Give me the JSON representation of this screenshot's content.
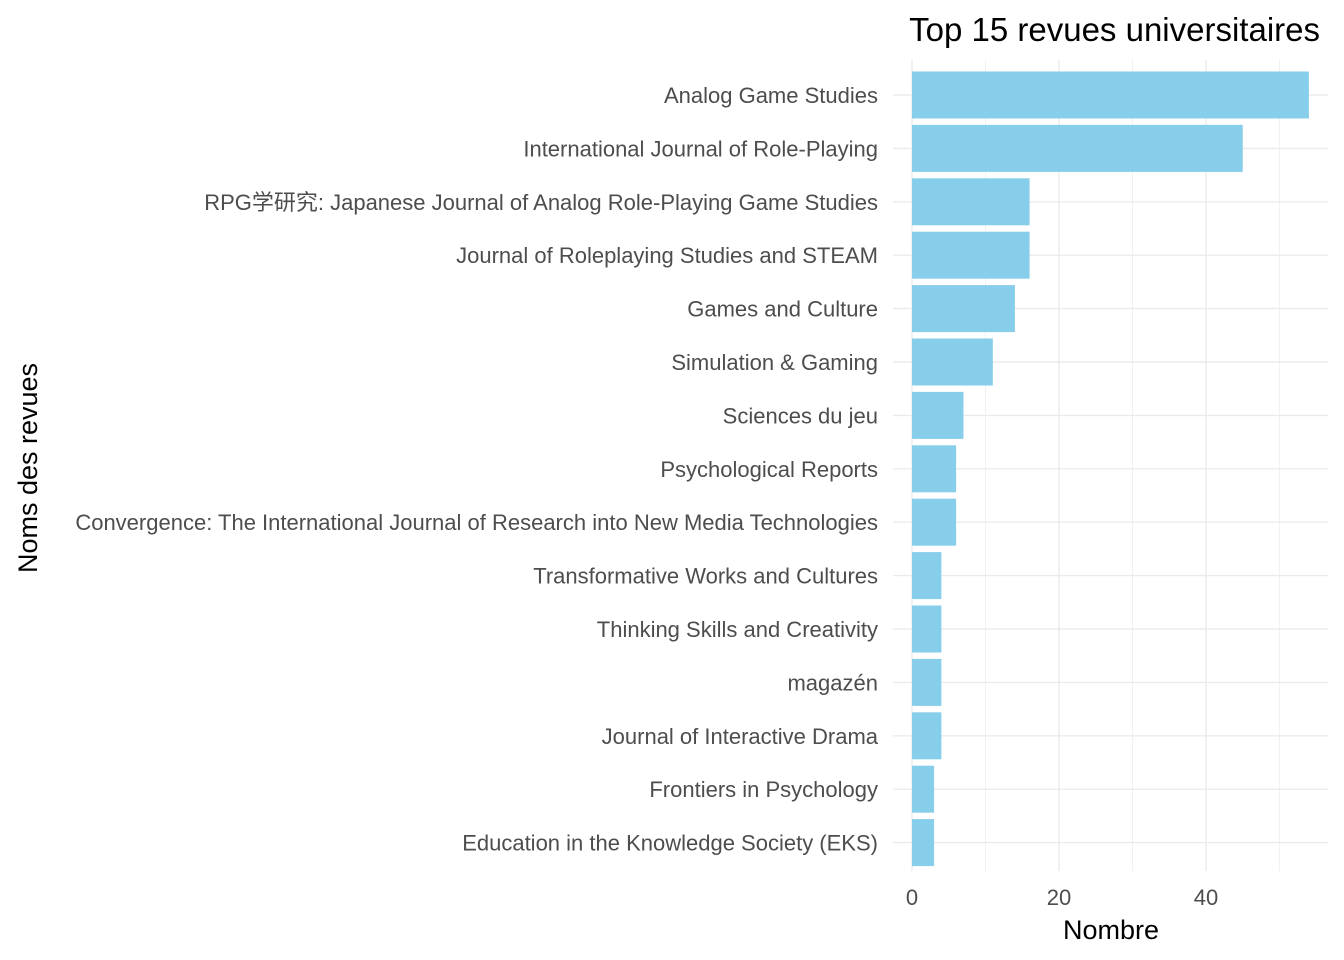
{
  "chart_data": {
    "type": "bar",
    "orientation": "horizontal",
    "title": "Top 15 revues universitaires",
    "xlabel": "Nombre",
    "ylabel": "Noms des revues",
    "bar_color": "#87CEEB",
    "grid": true,
    "xlim": [
      0,
      57
    ],
    "xticks": [
      0,
      20,
      40
    ],
    "categories": [
      "Analog Game Studies",
      "International Journal of Role-Playing",
      "RPG学研究: Japanese Journal of Analog Role-Playing Game Studies",
      "Journal of Roleplaying Studies and STEAM",
      "Games and Culture",
      "Simulation & Gaming",
      "Sciences du jeu",
      "Psychological Reports",
      "Convergence: The International Journal of Research into New Media Technologies",
      "Transformative Works and Cultures",
      "Thinking Skills and Creativity",
      "magazén",
      "Journal of Interactive Drama",
      "Frontiers in Psychology",
      "Education in the Knowledge Society (EKS)"
    ],
    "values": [
      54,
      45,
      16,
      16,
      14,
      11,
      7,
      6,
      6,
      4,
      4,
      4,
      4,
      3,
      3
    ]
  }
}
